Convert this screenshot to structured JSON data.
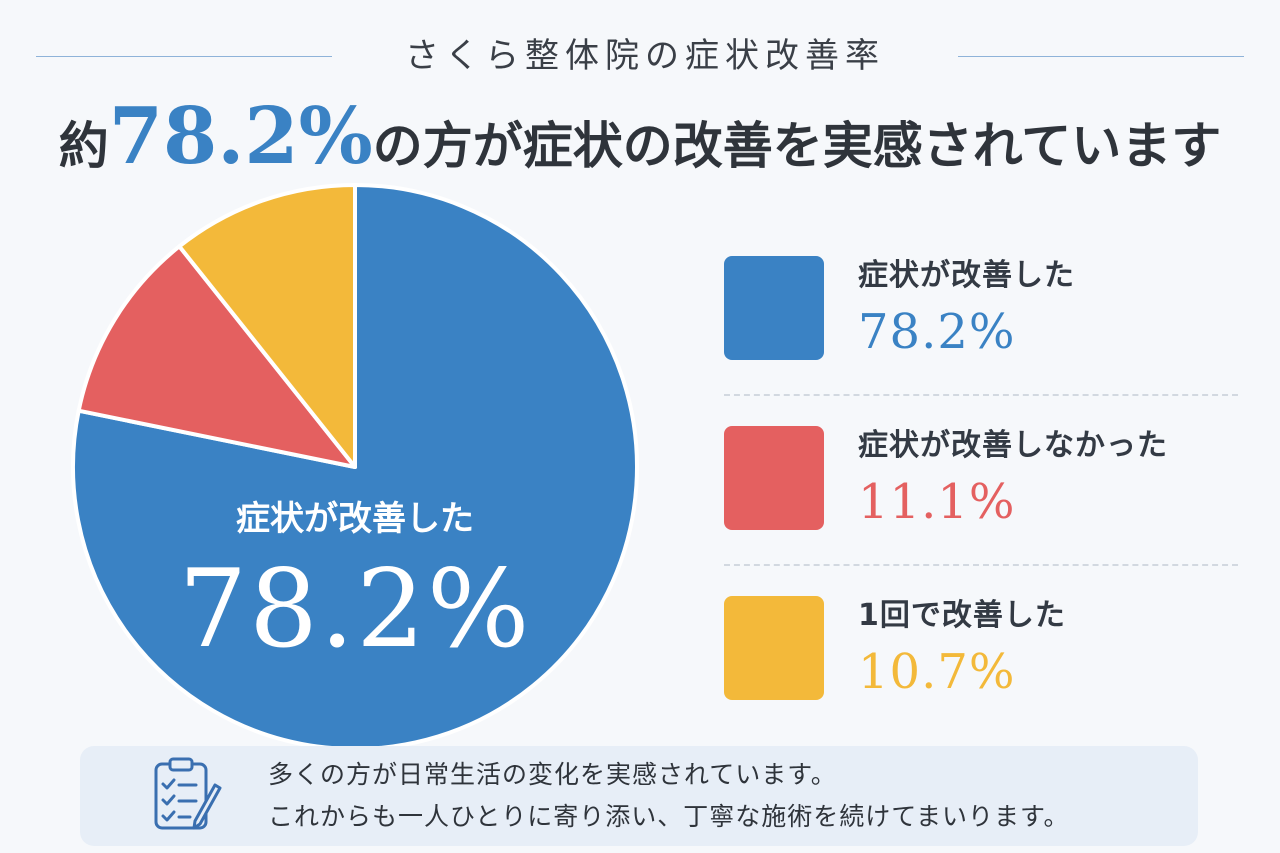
{
  "header": {
    "subtitle": "さくら整体院の症状改善率",
    "headline_prefix": "約",
    "headline_value": "78.2%",
    "headline_suffix": "の方が症状の改善を実感されています"
  },
  "pie_center": {
    "label": "症状が改善した",
    "value": "78.2%"
  },
  "legend": [
    {
      "label": "症状が改善した",
      "value": "78.2%",
      "color": "#3a82c4"
    },
    {
      "label": "症状が改善しなかった",
      "value": "11.1%",
      "color": "#e46060"
    },
    {
      "label": "1回で改善した",
      "value": "10.7%",
      "color": "#f3b93a"
    }
  ],
  "note": {
    "icon": "checklist-clipboard-icon",
    "line1": "多くの方が日常生活の変化を実感されています。",
    "line2": "これからも一人ひとりに寄り添い、丁寧な施術を続けてまいります。"
  },
  "chart_data": {
    "type": "pie",
    "categories": [
      "症状が改善した",
      "症状が改善しなかった",
      "1回で改善した"
    ],
    "values": [
      78.2,
      11.1,
      10.7
    ],
    "colors": [
      "#3a82c4",
      "#e46060",
      "#f3b93a"
    ],
    "title": "さくら整体院の症状改善率"
  }
}
